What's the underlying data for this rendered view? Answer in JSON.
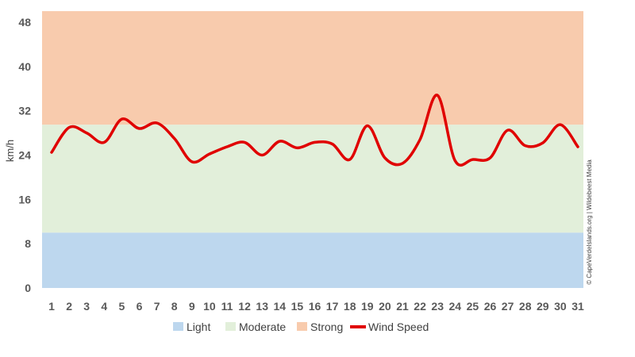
{
  "chart_data": {
    "type": "line",
    "ylabel": "km/h",
    "ylim": [
      0,
      48
    ],
    "yticks": [
      0,
      8,
      16,
      24,
      32,
      40,
      48
    ],
    "categories": [
      "1",
      "2",
      "3",
      "4",
      "5",
      "6",
      "7",
      "8",
      "9",
      "10",
      "11",
      "12",
      "13",
      "14",
      "15",
      "16",
      "17",
      "18",
      "19",
      "20",
      "21",
      "22",
      "23",
      "24",
      "25",
      "26",
      "27",
      "28",
      "29",
      "30",
      "31"
    ],
    "bands": [
      {
        "name": "Light",
        "from": 0,
        "to": 10,
        "color": "#bdd7ee"
      },
      {
        "name": "Moderate",
        "from": 10,
        "to": 29.5,
        "color": "#e2efda"
      },
      {
        "name": "Strong",
        "from": 29.5,
        "to": 50,
        "color": "#f8cbad"
      }
    ],
    "series": [
      {
        "name": "Wind Speed",
        "color": "#e00000",
        "values": [
          24.5,
          29.0,
          28.0,
          26.3,
          30.5,
          28.8,
          29.8,
          27.0,
          22.8,
          24.2,
          25.5,
          26.3,
          24.0,
          26.5,
          25.3,
          26.3,
          26.0,
          23.2,
          29.3,
          23.5,
          22.5,
          26.8,
          34.8,
          23.0,
          23.2,
          23.5,
          28.5,
          25.7,
          26.2,
          29.5,
          25.5
        ]
      }
    ],
    "legend_position": "bottom",
    "credit": "© CapeVerdeIslands.org | Wildebeest Media"
  }
}
